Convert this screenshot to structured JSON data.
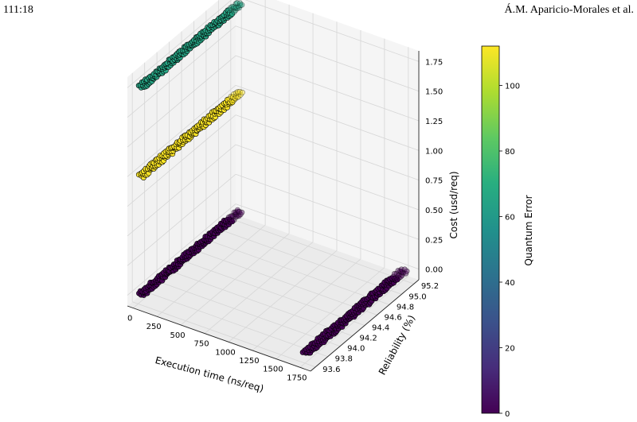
{
  "page_header": {
    "page_number": "111:18",
    "authors": "Á.M. Aparicio-Morales et al."
  },
  "colors": {
    "purple_cluster": "#440154",
    "yellow_cluster": "#fde725",
    "green_cluster": "#35b779",
    "marker_edge": "#000000",
    "pane": "#f2f2f2",
    "grid": "#d6d6d6"
  },
  "chart_data": {
    "type": "scatter",
    "projection": "3d",
    "title": "",
    "xlabel": "Execution time (ns/req)",
    "ylabel": "Reliability (%)",
    "zlabel": "Cost (usd/req)",
    "xlim": [
      -60,
      1860
    ],
    "ylim": [
      93.52,
      95.28
    ],
    "zlim": [
      -0.09,
      1.84
    ],
    "xticks": [
      0,
      250,
      500,
      750,
      1000,
      1250,
      1500,
      1750
    ],
    "yticks": [
      93.6,
      93.8,
      94.0,
      94.2,
      94.4,
      94.6,
      94.8,
      95.0,
      95.2
    ],
    "zticks": [
      0.0,
      0.25,
      0.5,
      0.75,
      1.0,
      1.25,
      1.5,
      1.75
    ],
    "xtick_labels": [
      "0",
      "250",
      "500",
      "750",
      "1000",
      "1250",
      "1500",
      "1750"
    ],
    "ytick_labels": [
      "93.6",
      "93.8",
      "94.0",
      "94.2",
      "94.4",
      "94.6",
      "94.8",
      "95.0",
      "95.2"
    ],
    "ztick_labels": [
      "0.00",
      "0.25",
      "0.50",
      "0.75",
      "1.00",
      "1.25",
      "1.50",
      "1.75"
    ],
    "grid": true,
    "colormap": "viridis",
    "colorbar": {
      "label": "Quantum Error",
      "range": [
        0,
        112
      ],
      "ticks": [
        0,
        20,
        40,
        60,
        80,
        100
      ],
      "tick_labels": [
        "0",
        "20",
        "40",
        "60",
        "80",
        "100"
      ]
    },
    "series": [
      {
        "color_value": 0,
        "x_range": [
          10,
          60
        ],
        "y_range": [
          93.6,
          95.2
        ],
        "z": 0.0
      },
      {
        "color_value": 0,
        "x_range": [
          1730,
          1790
        ],
        "y_range": [
          93.6,
          95.2
        ],
        "z": 0.0
      },
      {
        "color_value": 112,
        "x_range": [
          10,
          60
        ],
        "y_range": [
          93.6,
          95.2
        ],
        "z": 1.0
      },
      {
        "color_value": 65,
        "x_range": [
          10,
          60
        ],
        "y_range": [
          93.6,
          95.2
        ],
        "z": 1.75
      }
    ]
  }
}
